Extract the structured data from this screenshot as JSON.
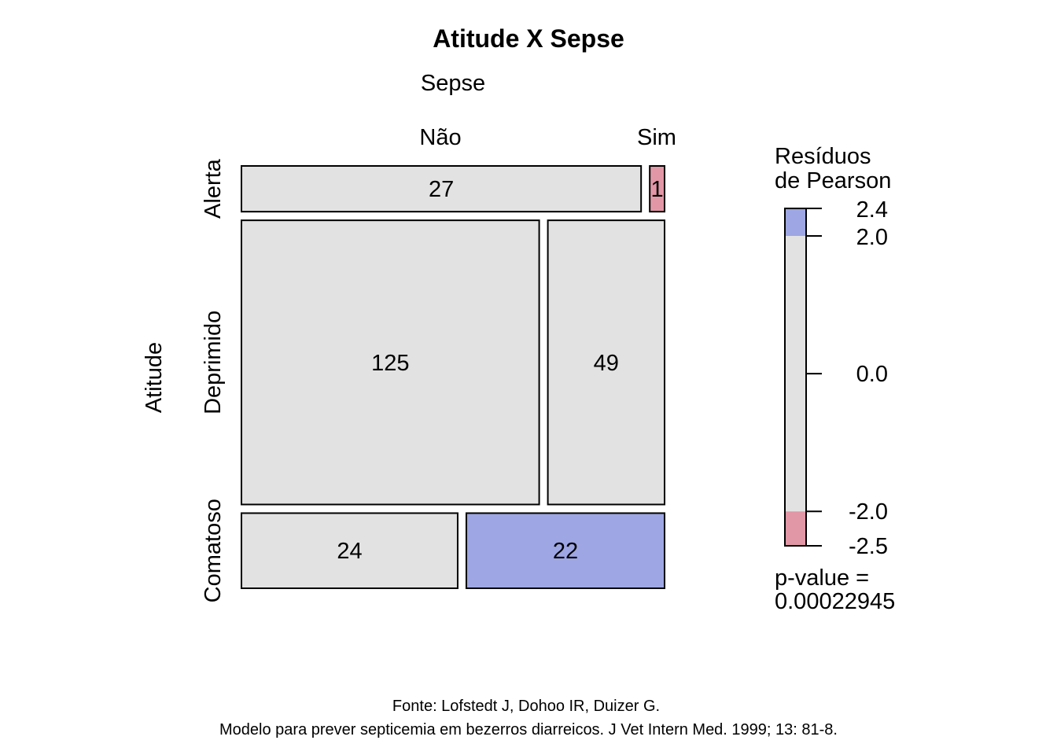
{
  "chart_data": {
    "type": "mosaic",
    "title": "Atitude X Sepse",
    "col_variable": "Sepse",
    "row_variable": "Atitude",
    "col_levels": [
      "Não",
      "Sim"
    ],
    "row_levels": [
      "Alerta",
      "Deprimido",
      "Comatoso"
    ],
    "counts": [
      [
        27,
        1
      ],
      [
        125,
        49
      ],
      [
        24,
        22
      ]
    ],
    "residual_class": [
      [
        "neutral",
        "negative"
      ],
      [
        "neutral",
        "neutral"
      ],
      [
        "neutral",
        "positive"
      ]
    ],
    "legend": {
      "title_line1": "Resíduos",
      "title_line2": "de Pearson",
      "min": -2.5,
      "max": 2.4,
      "ticks": [
        "2.4",
        "2.0",
        "0.0",
        "-2.0",
        "-2.5"
      ],
      "tick_values": [
        2.4,
        2.0,
        0.0,
        -2.0,
        -2.5
      ],
      "pvalue_line1": "p-value =",
      "pvalue_line2": "0.00022945"
    },
    "colors": {
      "positive": "#9ea7e3",
      "negative": "#e297a6",
      "neutral": "#e2e2e2",
      "border": "#000000"
    }
  },
  "footer": {
    "line1": "Fonte: Lofstedt J, Dohoo IR, Duizer G.",
    "line2": "Modelo para prever septicemia em bezerros diarreicos. J Vet Intern Med. 1999; 13: 81-8."
  }
}
